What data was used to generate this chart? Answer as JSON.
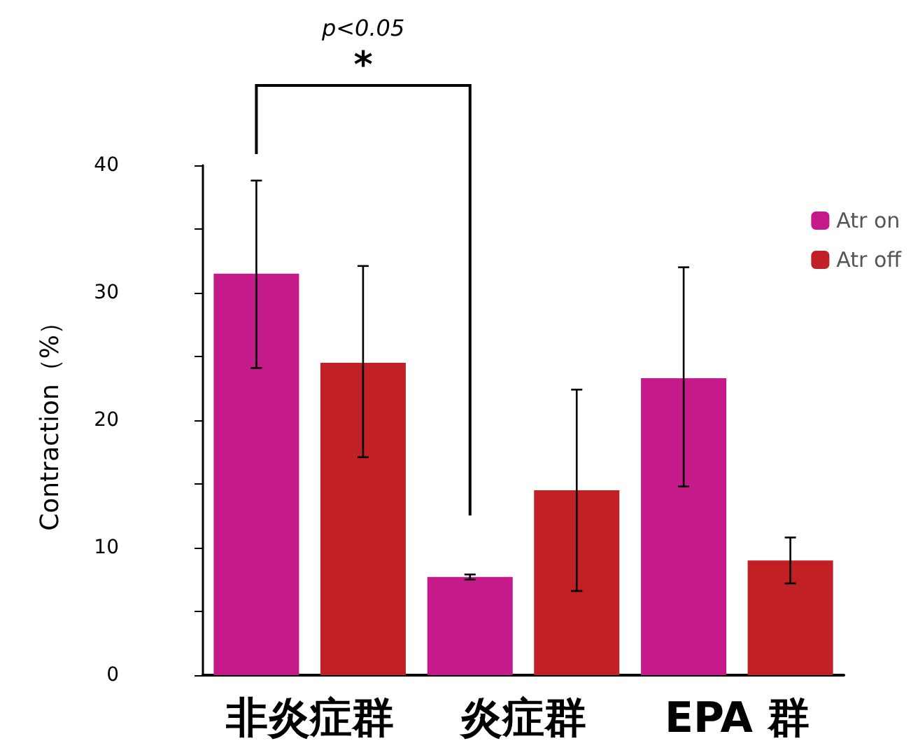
{
  "chart_data": {
    "type": "bar",
    "ylabel": "Contraction（%）",
    "categories": [
      "非炎症群",
      "炎症群",
      "EPA 群"
    ],
    "series": [
      {
        "name": "Atr on",
        "color": "#c41a8a",
        "values": [
          31.5,
          7.7,
          23.3
        ],
        "errors": [
          [
            24.1,
            38.8
          ],
          0.2,
          [
            14.8,
            32.0
          ]
        ]
      },
      {
        "name": "Atr off",
        "color": "#c02026",
        "values": [
          24.5,
          14.5,
          9.0
        ],
        "errors": [
          [
            17.1,
            32.1
          ],
          7.9,
          1.8
        ]
      }
    ],
    "ylim": [
      0,
      40
    ],
    "yticks": [
      0,
      {
        "value": 5,
        "label": null
      },
      10,
      {
        "value": 15,
        "label": null
      },
      20,
      {
        "value": 25,
        "label": null
      },
      30,
      {
        "value": 35,
        "label": null
      },
      40
    ],
    "annotations": [
      "p<0.05",
      "*"
    ],
    "legend": "top right",
    "grid": false
  }
}
